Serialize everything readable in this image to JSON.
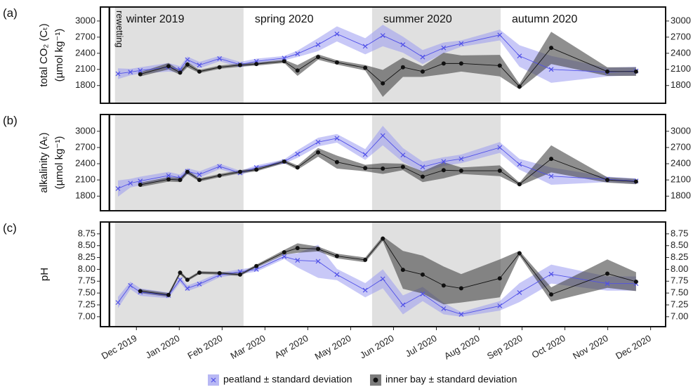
{
  "chart_data": [
    {
      "type": "line",
      "panel_label": "(a)",
      "ylabel": [
        "total CO₂ (Cₜ)",
        "(µmol kg⁻¹)"
      ],
      "x": [
        0.07,
        0.36,
        0.59,
        1.25,
        1.52,
        1.69,
        1.97,
        2.44,
        2.92,
        3.3,
        3.95,
        4.26,
        4.74,
        5.18,
        5.84,
        6.25,
        6.72,
        7.18,
        7.67,
        8.08,
        8.98,
        9.44,
        10.18,
        11.49,
        12.16
      ],
      "xlim": [
        -0.34,
        12.85
      ],
      "ylim": [
        1470,
        3260
      ],
      "yticks": [
        1800,
        2100,
        2400,
        2700,
        3000
      ],
      "shaded_regions": [
        {
          "label": "winter 2019",
          "start": 0,
          "end": 3,
          "shaded": true
        },
        {
          "label": "spring 2020",
          "start": 3,
          "end": 6,
          "shaded": false
        },
        {
          "label": "summer 2020",
          "start": 6,
          "end": 9,
          "shaded": true
        },
        {
          "label": "autumn 2020",
          "start": 9,
          "end": 12,
          "shaded": false
        }
      ],
      "rewetting": {
        "label": "rewetting",
        "x": -0.13
      },
      "series": [
        {
          "name": "peatland ± standard deviation",
          "color": "#5050e8",
          "band_color": "#9a9af0",
          "marker": "x",
          "values": [
            2020,
            2050,
            2080,
            2140,
            2100,
            2280,
            2180,
            2300,
            2190,
            2250,
            2310,
            2390,
            2560,
            2760,
            2530,
            2730,
            2560,
            2330,
            2500,
            2580,
            2740,
            2350,
            2100,
            2050,
            2070
          ],
          "sd": [
            100,
            60,
            60,
            80,
            60,
            60,
            60,
            50,
            50,
            50,
            40,
            60,
            120,
            140,
            150,
            200,
            150,
            130,
            100,
            60,
            100,
            200,
            250,
            80,
            80
          ]
        },
        {
          "name": "inner bay ± standard deviation",
          "color": "#111111",
          "band_color": "#444444",
          "marker": "o",
          "values": [
            null,
            null,
            2010,
            2160,
            2040,
            2190,
            2060,
            2140,
            2180,
            2200,
            2250,
            2080,
            2330,
            2230,
            2130,
            1840,
            2140,
            2060,
            2210,
            2210,
            2170,
            1780,
            2500,
            2060,
            2060
          ],
          "sd": [
            null,
            null,
            40,
            60,
            40,
            50,
            30,
            30,
            30,
            30,
            30,
            100,
            50,
            40,
            50,
            250,
            180,
            100,
            200,
            150,
            200,
            50,
            300,
            80,
            80
          ]
        }
      ]
    },
    {
      "type": "line",
      "panel_label": "(b)",
      "ylabel": [
        "alkalinity (Aₜ)",
        "(µmol kg⁻¹)"
      ],
      "x": [
        0.07,
        0.36,
        0.59,
        1.25,
        1.52,
        1.69,
        1.97,
        2.44,
        2.92,
        3.3,
        3.95,
        4.26,
        4.74,
        5.18,
        5.84,
        6.25,
        6.72,
        7.18,
        7.67,
        8.08,
        8.98,
        9.44,
        10.18,
        11.49,
        12.16
      ],
      "xlim": [
        -0.34,
        12.85
      ],
      "ylim": [
        1530,
        3310
      ],
      "yticks": [
        1800,
        2100,
        2400,
        2700,
        3000
      ],
      "series": [
        {
          "name": "peatland ± standard deviation",
          "color": "#5050e8",
          "band_color": "#9a9af0",
          "marker": "x",
          "values": [
            1940,
            2040,
            2080,
            2180,
            2140,
            2260,
            2200,
            2350,
            2230,
            2330,
            2440,
            2580,
            2800,
            2870,
            2570,
            2920,
            2560,
            2340,
            2440,
            2490,
            2700,
            2390,
            2170,
            2110,
            2080
          ],
          "sd": [
            150,
            80,
            80,
            70,
            60,
            60,
            60,
            50,
            40,
            40,
            40,
            70,
            80,
            80,
            100,
            180,
            130,
            100,
            80,
            80,
            100,
            100,
            160,
            50,
            50
          ]
        },
        {
          "name": "inner bay ± standard deviation",
          "color": "#111111",
          "band_color": "#444444",
          "marker": "o",
          "values": [
            null,
            null,
            2010,
            2110,
            2100,
            2250,
            2100,
            2180,
            2250,
            2290,
            2440,
            2330,
            2610,
            2430,
            2320,
            2310,
            2340,
            2160,
            2280,
            2270,
            2270,
            2020,
            2490,
            2100,
            2070
          ],
          "sd": [
            null,
            null,
            40,
            40,
            40,
            40,
            30,
            30,
            30,
            30,
            30,
            40,
            80,
            120,
            60,
            100,
            60,
            100,
            150,
            60,
            100,
            30,
            250,
            50,
            50
          ]
        }
      ]
    },
    {
      "type": "line",
      "panel_label": "(c)",
      "ylabel": [
        "pH"
      ],
      "x": [
        0.07,
        0.36,
        0.59,
        1.25,
        1.52,
        1.69,
        1.97,
        2.44,
        2.92,
        3.3,
        3.95,
        4.26,
        4.74,
        5.18,
        5.84,
        6.25,
        6.72,
        7.18,
        7.67,
        8.08,
        8.98,
        9.44,
        10.18,
        11.49,
        12.16
      ],
      "xlim": [
        -0.34,
        12.85
      ],
      "xticks": [
        {
          "value": 0.5,
          "label": "Dec 2019"
        },
        {
          "value": 1.5,
          "label": "Jan 2020"
        },
        {
          "value": 2.5,
          "label": "Feb 2020"
        },
        {
          "value": 3.5,
          "label": "Mar 2020"
        },
        {
          "value": 4.5,
          "label": "Apr 2020"
        },
        {
          "value": 5.5,
          "label": "May 2020"
        },
        {
          "value": 6.5,
          "label": "Jun 2020"
        },
        {
          "value": 7.5,
          "label": "Jul 2020"
        },
        {
          "value": 8.5,
          "label": "Aug 2020"
        },
        {
          "value": 9.5,
          "label": "Sep 2020"
        },
        {
          "value": 10.5,
          "label": "Oct 2020"
        },
        {
          "value": 11.5,
          "label": "Nov 2020"
        },
        {
          "value": 12.5,
          "label": "Dec 2020"
        }
      ],
      "ylim": [
        6.79,
        9.0
      ],
      "yticks": [
        {
          "value": 7,
          "label": "7.00"
        },
        {
          "value": 7.25,
          "label": "7.25"
        },
        {
          "value": 7.5,
          "label": "7.50"
        },
        {
          "value": 7.75,
          "label": "7.75"
        },
        {
          "value": 8,
          "label": "8.00"
        },
        {
          "value": 8.25,
          "label": "8.25"
        },
        {
          "value": 8.5,
          "label": "8.50"
        },
        {
          "value": 8.75,
          "label": "8.75"
        }
      ],
      "legend": "bottom",
      "series": [
        {
          "name": "peatland ± standard deviation",
          "color": "#5050e8",
          "band_color": "#9a9af0",
          "marker": "x",
          "values": [
            7.3,
            7.66,
            7.52,
            7.45,
            7.78,
            7.6,
            7.69,
            7.88,
            7.95,
            8.0,
            8.27,
            8.19,
            8.17,
            7.89,
            7.56,
            7.8,
            7.25,
            7.48,
            7.17,
            7.05,
            7.23,
            7.51,
            7.9,
            7.7,
            7.7
          ],
          "sd": [
            0.12,
            0.08,
            0.08,
            0.06,
            0.06,
            0.06,
            0.06,
            0.05,
            0.05,
            0.05,
            0.05,
            0.15,
            0.35,
            0.12,
            0.15,
            0.2,
            0.2,
            0.15,
            0.12,
            0.05,
            0.1,
            0.2,
            0.2,
            0.15,
            0.15
          ]
        },
        {
          "name": "inner bay ± standard deviation",
          "color": "#111111",
          "band_color": "#444444",
          "marker": "o",
          "values": [
            null,
            null,
            7.54,
            7.46,
            7.93,
            7.78,
            7.93,
            7.92,
            7.89,
            8.07,
            8.36,
            8.45,
            8.43,
            8.28,
            8.2,
            8.65,
            7.99,
            7.89,
            7.66,
            7.6,
            7.81,
            8.34,
            7.47,
            7.91,
            7.74
          ],
          "sd": [
            null,
            null,
            0.04,
            0.04,
            0.04,
            0.03,
            0.03,
            0.03,
            0.03,
            0.03,
            0.05,
            0.1,
            0.05,
            0.05,
            0.05,
            0.05,
            0.4,
            0.4,
            0.4,
            0.3,
            0.4,
            0.05,
            0.15,
            0.3,
            0.2
          ]
        }
      ]
    }
  ]
}
